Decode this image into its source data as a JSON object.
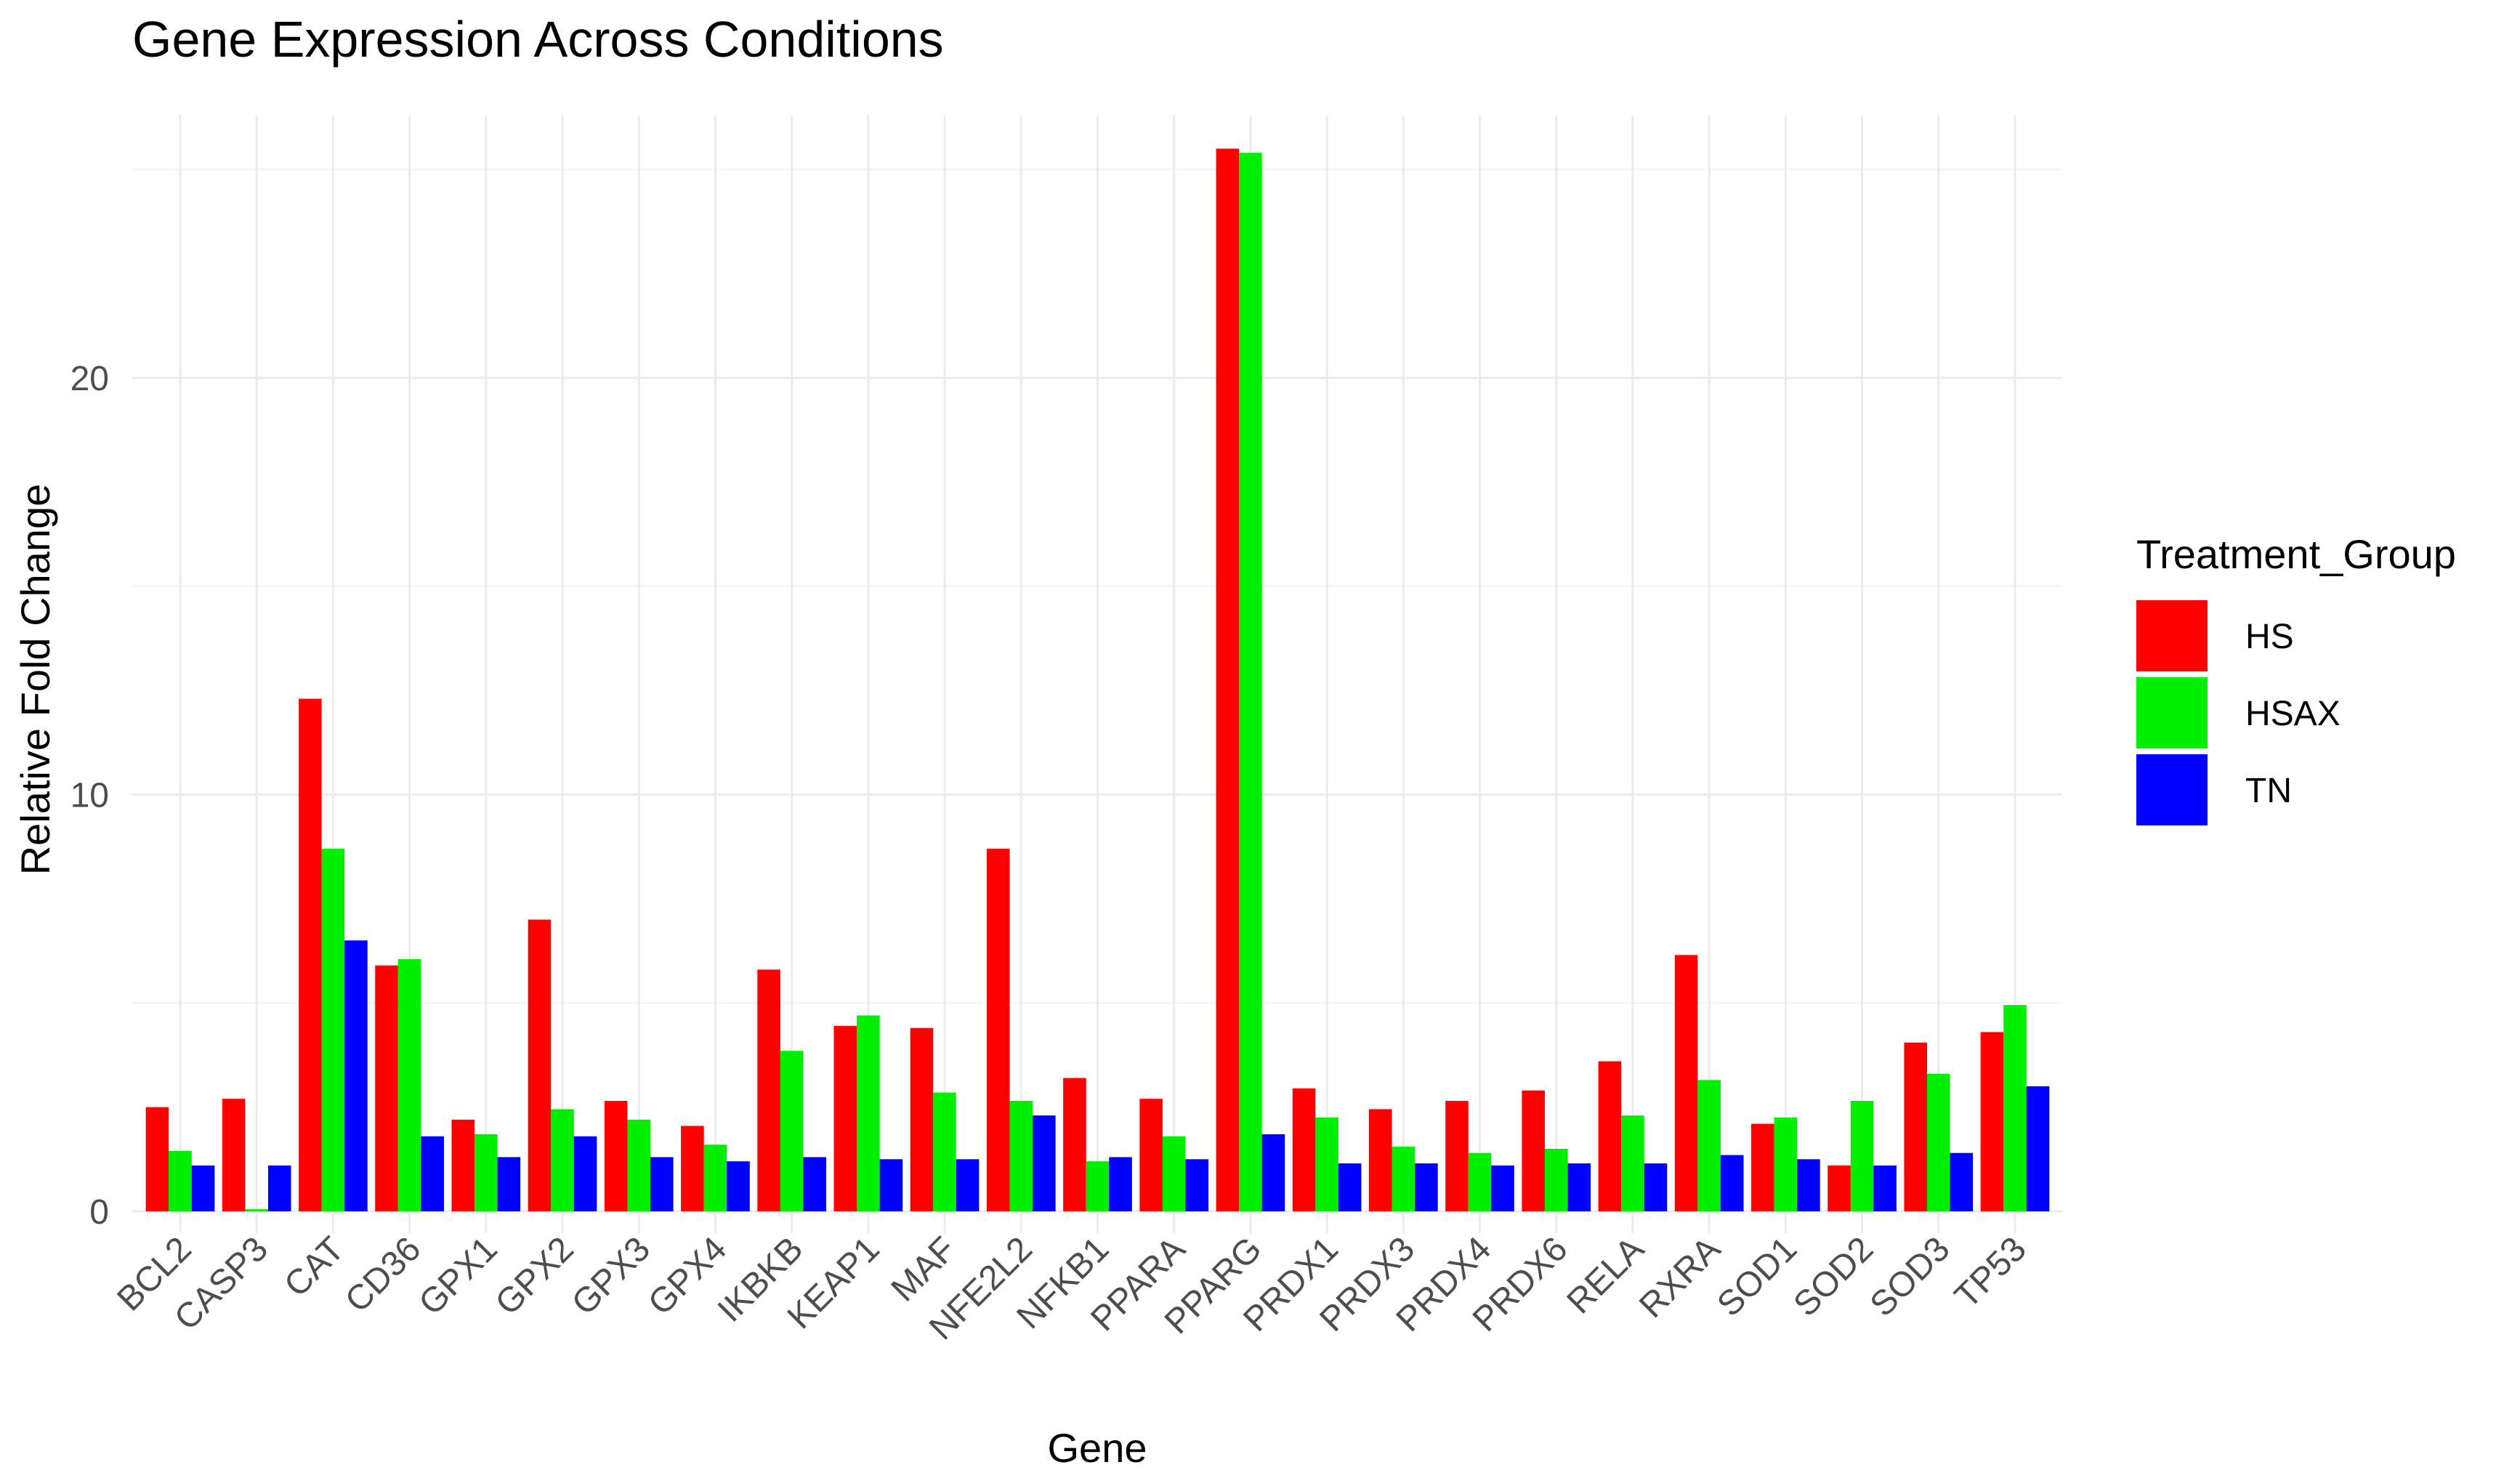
{
  "chart_data": {
    "type": "bar",
    "title": "Gene Expression Across Conditions",
    "xlabel": "Gene",
    "ylabel": "Relative Fold Change",
    "ylim": [
      0,
      26.3
    ],
    "yticks": [
      0,
      10,
      20
    ],
    "grid": true,
    "legend": {
      "title": "Treatment_Group",
      "position": "right"
    },
    "categories": [
      "BCL2",
      "CASP3",
      "CAT",
      "CD36",
      "GPX1",
      "GPX2",
      "GPX3",
      "GPX4",
      "IKBKB",
      "KEAP1",
      "MAF",
      "NFE2L2",
      "NFKB1",
      "PPARA",
      "PPARG",
      "PRDX1",
      "PRDX3",
      "PRDX4",
      "PRDX6",
      "RELA",
      "RXRA",
      "SOD1",
      "SOD2",
      "SOD3",
      "TP53"
    ],
    "series": [
      {
        "name": "HS",
        "color": "#ff0000",
        "values": [
          2.5,
          2.7,
          12.3,
          5.9,
          2.2,
          7.0,
          2.65,
          2.05,
          5.8,
          4.45,
          4.4,
          8.7,
          3.2,
          2.7,
          25.5,
          2.95,
          2.45,
          2.65,
          2.9,
          3.6,
          6.15,
          2.1,
          1.1,
          4.05,
          4.3
        ]
      },
      {
        "name": "HSAX",
        "color": "#00ee00",
        "values": [
          1.45,
          0.05,
          8.7,
          6.05,
          1.85,
          2.45,
          2.2,
          1.6,
          3.85,
          4.7,
          2.85,
          2.65,
          1.2,
          1.8,
          25.4,
          2.25,
          1.55,
          1.4,
          1.5,
          2.3,
          3.15,
          2.25,
          2.65,
          3.3,
          4.95
        ]
      },
      {
        "name": "TN",
        "color": "#0000ff",
        "values": [
          1.1,
          1.1,
          6.5,
          1.8,
          1.3,
          1.8,
          1.3,
          1.2,
          1.3,
          1.25,
          1.25,
          2.3,
          1.3,
          1.25,
          1.85,
          1.15,
          1.15,
          1.1,
          1.15,
          1.15,
          1.35,
          1.25,
          1.1,
          1.4,
          3.0
        ]
      }
    ]
  }
}
